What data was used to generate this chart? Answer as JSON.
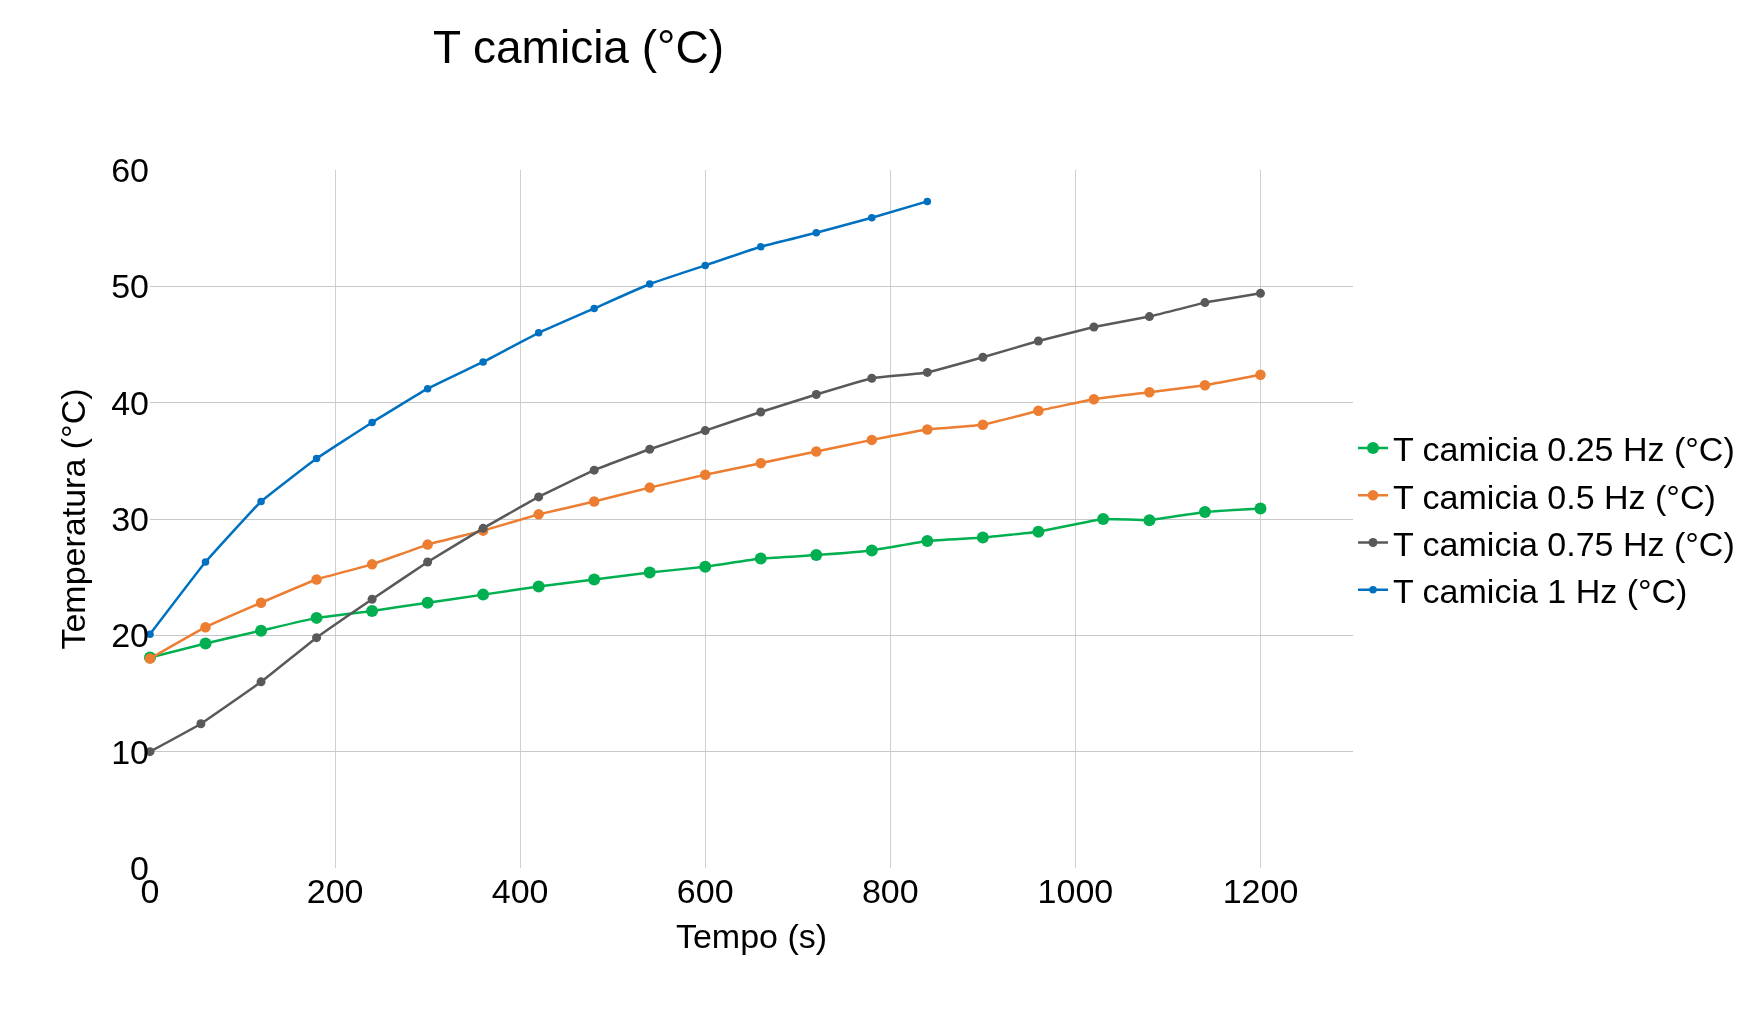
{
  "chart_data": {
    "type": "line",
    "title": "T camicia (°C)",
    "xlabel": "Tempo (s)",
    "ylabel": "Temperatura (°C)",
    "xlim": [
      0,
      1300
    ],
    "xticks": [
      0,
      200,
      400,
      600,
      800,
      1000,
      1200
    ],
    "ylim": [
      0,
      60
    ],
    "yticks": [
      0,
      10,
      20,
      30,
      40,
      50,
      60
    ],
    "grid": true,
    "legend": "right",
    "marker": "circle",
    "line_style": "solid",
    "series": [
      {
        "name": "T camicia 0.25 Hz (°C)",
        "color": "#00b050",
        "x": [
          0,
          60,
          120,
          180,
          240,
          300,
          360,
          420,
          480,
          540,
          600,
          660,
          720,
          780,
          840,
          900,
          960,
          1030,
          1080,
          1140,
          1200
        ],
        "values": [
          18.1,
          19.3,
          20.4,
          21.5,
          22.1,
          22.8,
          23.5,
          24.2,
          24.8,
          25.4,
          25.9,
          26.6,
          26.9,
          27.3,
          28.1,
          28.4,
          28.9,
          30.0,
          29.9,
          30.6,
          30.9
        ]
      },
      {
        "name": "T camicia 0.5 Hz (°C)",
        "color": "#ed7d31",
        "x": [
          0,
          60,
          120,
          180,
          240,
          300,
          360,
          420,
          480,
          540,
          600,
          660,
          720,
          780,
          840,
          900,
          960,
          1020,
          1080,
          1140,
          1200
        ],
        "values": [
          18.0,
          20.7,
          22.8,
          24.8,
          26.1,
          27.8,
          29.0,
          30.4,
          31.5,
          32.7,
          33.8,
          34.8,
          35.8,
          36.8,
          37.7,
          38.1,
          39.3,
          40.3,
          40.9,
          41.5,
          42.4
        ]
      },
      {
        "name": "T camicia 0.75 Hz (°C)",
        "color": "#595959",
        "x": [
          0,
          55,
          120,
          180,
          240,
          300,
          360,
          420,
          480,
          540,
          600,
          660,
          720,
          780,
          840,
          900,
          960,
          1020,
          1080,
          1140,
          1200
        ],
        "values": [
          10.0,
          12.4,
          16.0,
          19.8,
          23.1,
          26.3,
          29.2,
          31.9,
          34.2,
          36.0,
          37.6,
          39.2,
          40.7,
          42.1,
          42.6,
          43.9,
          45.3,
          46.5,
          47.4,
          48.6,
          49.4
        ]
      },
      {
        "name": "T camicia 1 Hz (°C)",
        "color": "#0070c0",
        "x": [
          0,
          60,
          120,
          180,
          240,
          300,
          360,
          420,
          480,
          540,
          600,
          660,
          720,
          780,
          840
        ],
        "values": [
          20.1,
          26.3,
          31.5,
          35.2,
          38.3,
          41.2,
          43.5,
          46.0,
          48.1,
          50.2,
          51.8,
          53.4,
          54.6,
          55.9,
          57.3
        ]
      }
    ]
  }
}
